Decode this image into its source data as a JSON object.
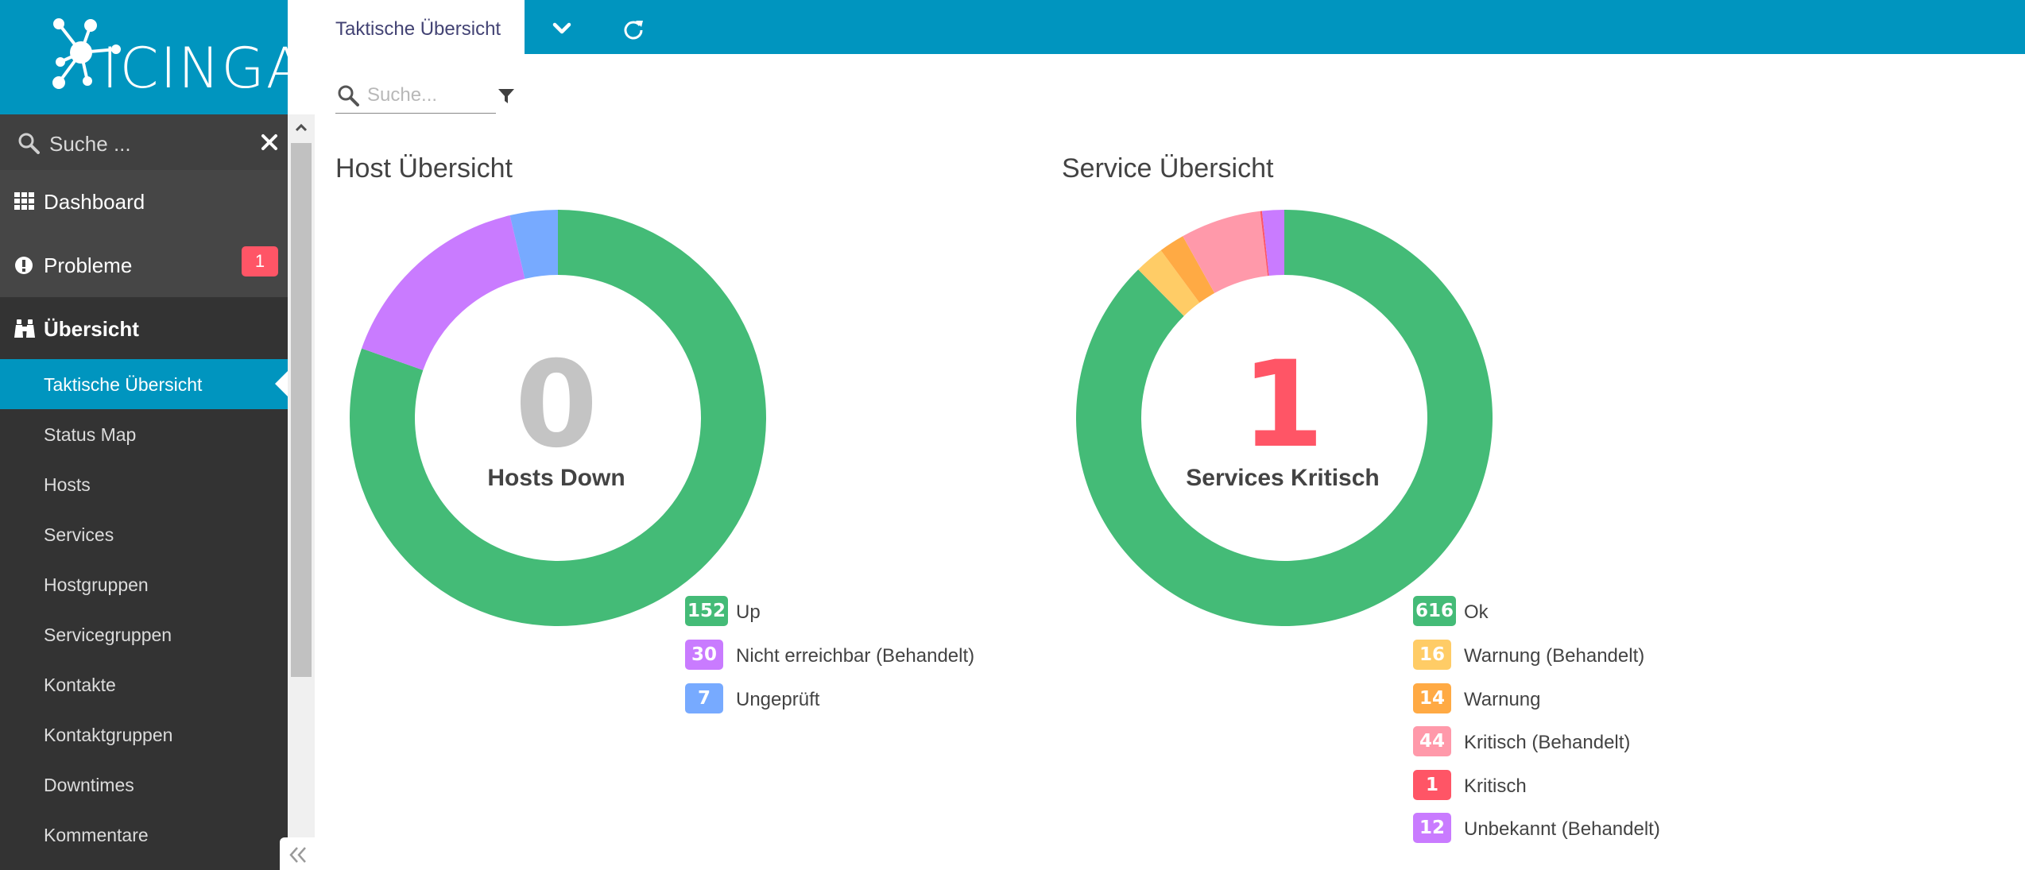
{
  "app": {
    "logo_text": "ICINGA"
  },
  "sidebar": {
    "search": {
      "placeholder": "Suche ..."
    },
    "main_items": [
      {
        "label": "Dashboard",
        "icon": "grid-icon"
      },
      {
        "label": "Probleme",
        "icon": "alert-icon",
        "badge": "1"
      },
      {
        "label": "Übersicht",
        "icon": "binoculars-icon"
      }
    ],
    "sub_items": [
      {
        "label": "Taktische Übersicht",
        "active": true
      },
      {
        "label": "Status Map"
      },
      {
        "label": "Hosts"
      },
      {
        "label": "Services"
      },
      {
        "label": "Hostgruppen"
      },
      {
        "label": "Servicegruppen"
      },
      {
        "label": "Kontakte"
      },
      {
        "label": "Kontaktgruppen"
      },
      {
        "label": "Downtimes"
      },
      {
        "label": "Kommentare"
      }
    ]
  },
  "topbar": {
    "active_tab": "Taktische Übersicht",
    "dropdown_icon": "chevron-down-icon",
    "refresh_icon": "refresh-icon"
  },
  "content": {
    "search": {
      "placeholder": "Suche..."
    },
    "filter_icon": "filter-icon"
  },
  "host_overview": {
    "title": "Host Übersicht",
    "count": "0",
    "count_label": "Hosts Down",
    "legend": [
      {
        "value": "152",
        "label": "Up",
        "color": "#44bb77"
      },
      {
        "value": "30",
        "label": "Nicht erreichbar (Behandelt)",
        "color": "#c97bff"
      },
      {
        "value": "7",
        "label": "Ungeprüft",
        "color": "#77aaff"
      }
    ]
  },
  "service_overview": {
    "title": "Service Übersicht",
    "count": "1",
    "count_label": "Services Kritisch",
    "legend": [
      {
        "value": "616",
        "label": "Ok",
        "color": "#44bb77"
      },
      {
        "value": "16",
        "label": "Warnung (Behandelt)",
        "color": "#ffcc66"
      },
      {
        "value": "14",
        "label": "Warnung",
        "color": "#ffaa44"
      },
      {
        "value": "44",
        "label": "Kritisch (Behandelt)",
        "color": "#ff99aa"
      },
      {
        "value": "1",
        "label": "Kritisch",
        "color": "#ff5566"
      },
      {
        "value": "12",
        "label": "Unbekannt (Behandelt)",
        "color": "#c97bff"
      }
    ]
  },
  "chart_data": [
    {
      "type": "pie",
      "title": "Host Übersicht",
      "categories": [
        "Up",
        "Nicht erreichbar (Behandelt)",
        "Ungeprüft"
      ],
      "values": [
        152,
        30,
        7
      ],
      "colors": [
        "#44bb77",
        "#c97bff",
        "#77aaff"
      ],
      "legend": "bottom-right"
    },
    {
      "type": "pie",
      "title": "Service Übersicht",
      "categories": [
        "Ok",
        "Warnung (Behandelt)",
        "Warnung",
        "Kritisch (Behandelt)",
        "Kritisch",
        "Unbekannt (Behandelt)"
      ],
      "values": [
        616,
        16,
        14,
        44,
        1,
        12
      ],
      "colors": [
        "#44bb77",
        "#ffcc66",
        "#ffaa44",
        "#ff99aa",
        "#ff5566",
        "#c97bff"
      ],
      "legend": "bottom-right"
    }
  ]
}
